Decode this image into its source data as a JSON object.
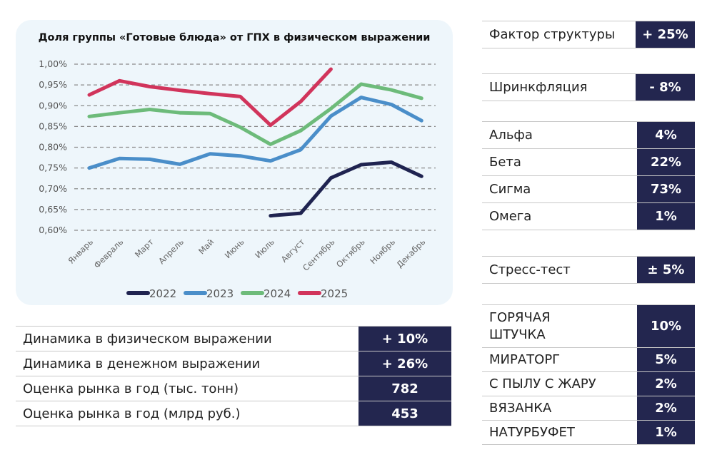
{
  "chart_data": {
    "type": "line",
    "title": "Доля группы «Готовые блюда» от ГПХ в физическом выражении",
    "categories": [
      "Январь",
      "Февраль",
      "Март",
      "Апрель",
      "Май",
      "Июнь",
      "Июль",
      "Август",
      "Сентябрь",
      "Октябрь",
      "Ноябрь",
      "Декабрь"
    ],
    "ylim": [
      0.6,
      1.0
    ],
    "yticks": [
      "0,60%",
      "0,65%",
      "0,70%",
      "0,75%",
      "0,80%",
      "0,85%",
      "0,90%",
      "0,95%",
      "1,00%"
    ],
    "grid": true,
    "legend": "bottom",
    "series": [
      {
        "name": "2022",
        "color": "#1f2350",
        "values": [
          null,
          null,
          null,
          null,
          null,
          null,
          0.635,
          0.641,
          0.726,
          0.758,
          0.764,
          0.73
        ]
      },
      {
        "name": "2023",
        "color": "#4a8ec9",
        "values": [
          0.75,
          0.773,
          0.771,
          0.759,
          0.784,
          0.779,
          0.767,
          0.794,
          0.875,
          0.92,
          0.903,
          0.864
        ]
      },
      {
        "name": "2024",
        "color": "#6dbb7a",
        "values": [
          0.874,
          0.883,
          0.891,
          0.883,
          0.881,
          0.848,
          0.807,
          0.84,
          0.893,
          0.952,
          0.938,
          0.918
        ]
      },
      {
        "name": "2025",
        "color": "#d1345b",
        "values": [
          0.926,
          0.96,
          0.946,
          0.937,
          0.929,
          0.922,
          0.853,
          0.91,
          0.988,
          null,
          null,
          null
        ]
      }
    ]
  },
  "summary": [
    {
      "label": "Динамика в физическом выражении",
      "value": "+ 10%"
    },
    {
      "label": "Динамика в денежном выражении",
      "value": "+ 26%"
    },
    {
      "label": "Оценка рынка в год (тыс. тонн)",
      "value": "782"
    },
    {
      "label": "Оценка рынка в год (млрд руб.)",
      "value": "453"
    }
  ],
  "factor": {
    "label": "Фактор структуры",
    "value": "+ 25%"
  },
  "shrink": {
    "label": "Шринкфляция",
    "value": "- 8%"
  },
  "segments": [
    {
      "label": "Альфа",
      "value": "4%"
    },
    {
      "label": "Бета",
      "value": "22%"
    },
    {
      "label": "Сигма",
      "value": "73%"
    },
    {
      "label": "Омега",
      "value": "1%"
    }
  ],
  "stress": {
    "label": "Стресс-тест",
    "value": "± 5%"
  },
  "brands": [
    {
      "label": "ГОРЯЧАЯ ШТУЧКА",
      "value": "10%"
    },
    {
      "label": "МИРАТОРГ",
      "value": "5%"
    },
    {
      "label": "С ПЫЛУ С ЖАРУ",
      "value": "2%"
    },
    {
      "label": "ВЯЗАНКА",
      "value": "2%"
    },
    {
      "label": "НАТУРБУФЕТ",
      "value": "1%"
    }
  ]
}
